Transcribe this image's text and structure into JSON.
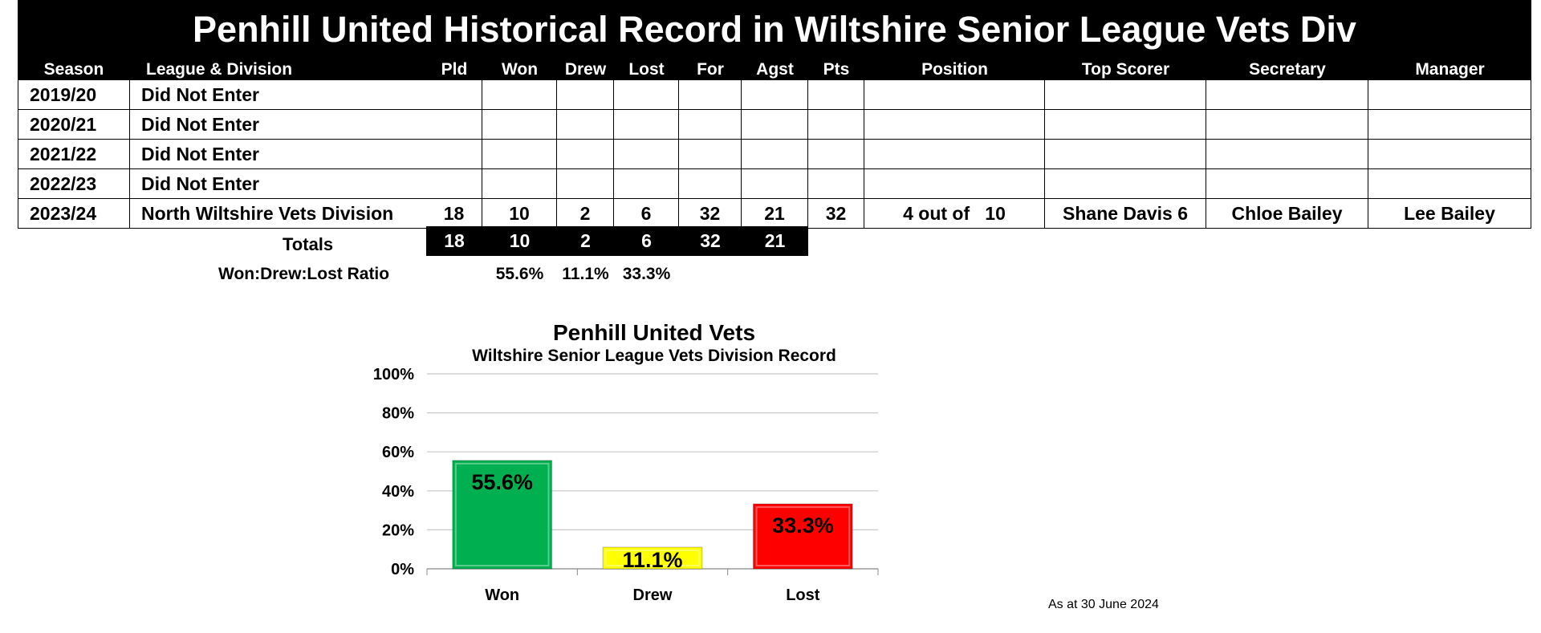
{
  "title": "Penhill United Historical Record in Wiltshire Senior League Vets Div",
  "columns": [
    "Season",
    "League & Division",
    "Pld",
    "Won",
    "Drew",
    "Lost",
    "For",
    "Agst",
    "Pts",
    "Position",
    "Top Scorer",
    "Secretary",
    "Manager"
  ],
  "rows": [
    [
      "2019/20",
      "Did Not Enter",
      "",
      "",
      "",
      "",
      "",
      "",
      "",
      "",
      "",
      "",
      ""
    ],
    [
      "2020/21",
      "Did Not Enter",
      "",
      "",
      "",
      "",
      "",
      "",
      "",
      "",
      "",
      "",
      ""
    ],
    [
      "2021/22",
      "Did Not Enter",
      "",
      "",
      "",
      "",
      "",
      "",
      "",
      "",
      "",
      "",
      ""
    ],
    [
      "2022/23",
      "Did Not Enter",
      "",
      "",
      "",
      "",
      "",
      "",
      "",
      "",
      "",
      "",
      ""
    ],
    [
      "2023/24",
      "North Wiltshire Vets Division",
      "18",
      "10",
      "2",
      "6",
      "32",
      "21",
      "32",
      "4 out of   10",
      "Shane Davis 6",
      "Chloe Bailey",
      "Lee Bailey"
    ]
  ],
  "totals": {
    "label": "Totals",
    "values": [
      "18",
      "10",
      "2",
      "6",
      "32",
      "21"
    ]
  },
  "ratio": {
    "label": "Won:Drew:Lost Ratio",
    "values": [
      "55.6%",
      "11.1%",
      "33.3%"
    ]
  },
  "chart_data": {
    "type": "bar",
    "title": "Penhill United Vets",
    "subtitle": "Wiltshire Senior League Vets Division Record",
    "categories": [
      "Won",
      "Drew",
      "Lost"
    ],
    "values": [
      55.6,
      11.1,
      33.3
    ],
    "data_labels": [
      "55.6%",
      "11.1%",
      "33.3%"
    ],
    "colors": [
      "#00b050",
      "#ffff00",
      "#ff0000"
    ],
    "ylim": [
      0,
      100
    ],
    "yticks": [
      "0%",
      "20%",
      "40%",
      "60%",
      "80%",
      "100%"
    ],
    "grid": true,
    "legend": "none"
  },
  "footer_note": "As at 30 June 2024"
}
